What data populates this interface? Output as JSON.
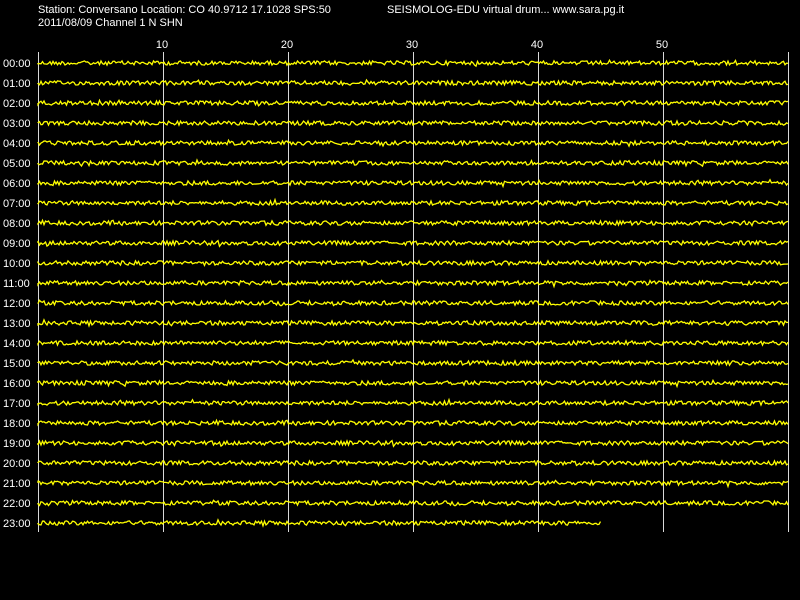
{
  "header": {
    "station_line": "Station: Conversano Location: CO 40.9712 17.1028 SPS:50",
    "date_line": "2011/08/09  Channel 1 N SHN",
    "app_title": "SEISMOLOG-EDU virtual drum... www.sara.pg.it"
  },
  "colors": {
    "background": "#000000",
    "trace": "#ffff00",
    "grid": "#ffffff",
    "text": "#ffffff"
  },
  "chart_data": {
    "type": "line",
    "xlabel": "",
    "ylabel": "",
    "xlim": [
      0,
      60
    ],
    "x_ticks": [
      "10",
      "20",
      "30",
      "40",
      "50"
    ],
    "x_tick_values": [
      10,
      20,
      30,
      40,
      50
    ],
    "grid": true,
    "rows": [
      "00:00",
      "01:00",
      "02:00",
      "03:00",
      "04:00",
      "05:00",
      "06:00",
      "07:00",
      "08:00",
      "09:00",
      "10:00",
      "11:00",
      "12:00",
      "13:00",
      "14:00",
      "15:00",
      "16:00",
      "17:00",
      "18:00",
      "19:00",
      "20:00",
      "21:00",
      "22:00",
      "23:00"
    ],
    "row_end_minute": [
      60,
      60,
      60,
      60,
      60,
      60,
      60,
      60,
      60,
      60,
      60,
      60,
      60,
      60,
      60,
      60,
      60,
      60,
      60,
      60,
      60,
      60,
      60,
      45
    ]
  }
}
